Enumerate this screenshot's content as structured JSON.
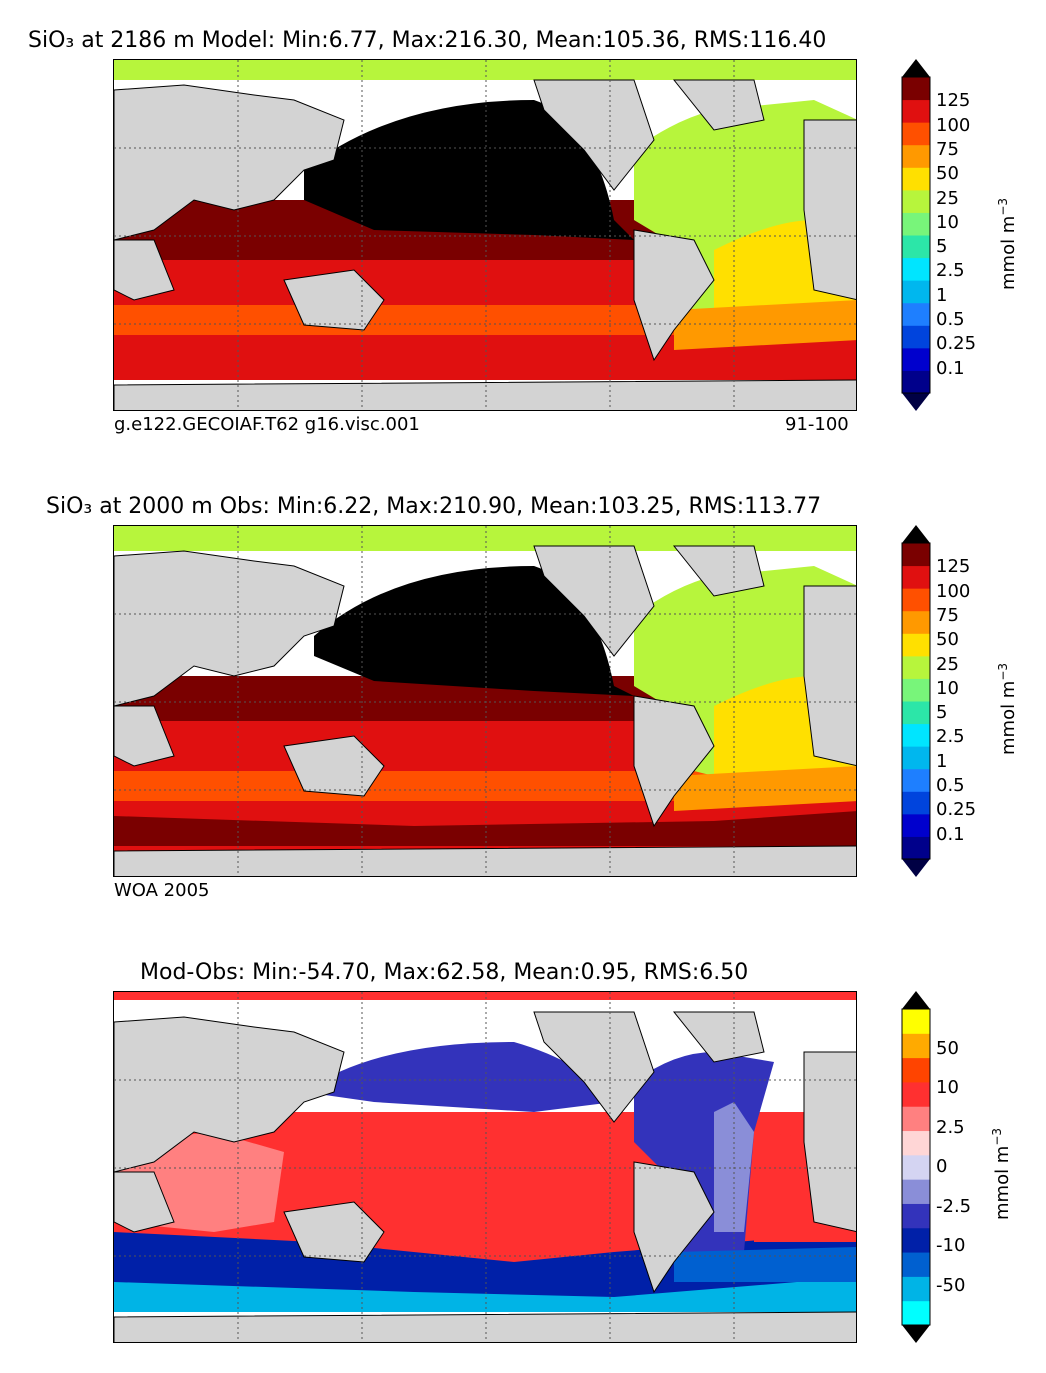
{
  "panels": [
    {
      "title": "SiO₃ at 2186 m Model: Min:6.77, Max:216.30, Mean:105.36, RMS:116.40",
      "caption_left": "g.e122.GECOIAF.T62 g16.visc.001",
      "caption_right": "91-100",
      "colorbar": {
        "unit": "mmol m",
        "unit_exp": "−3",
        "ticks": [
          "125",
          "100",
          "75",
          "50",
          "25",
          "10",
          "5",
          "2.5",
          "1",
          "0.5",
          "0.25",
          "0.1"
        ],
        "colors": [
          "#00008b",
          "#0000cd",
          "#0044dd",
          "#1e7fff",
          "#00b7ee",
          "#00e5ff",
          "#2ce6a8",
          "#78f57a",
          "#b7f53c",
          "#ffe000",
          "#ff9900",
          "#ff5000",
          "#e01010",
          "#7a0000"
        ],
        "over_color": "#000000",
        "under_color": "#000044"
      }
    },
    {
      "title": "SiO₃ at 2000 m Obs: Min:6.22, Max:210.90, Mean:103.25, RMS:113.77",
      "caption_left": "WOA 2005",
      "caption_right": "",
      "colorbar": {
        "unit": "mmol m",
        "unit_exp": "−3",
        "ticks": [
          "125",
          "100",
          "75",
          "50",
          "25",
          "10",
          "5",
          "2.5",
          "1",
          "0.5",
          "0.25",
          "0.1"
        ],
        "colors": [
          "#00008b",
          "#0000cd",
          "#0044dd",
          "#1e7fff",
          "#00b7ee",
          "#00e5ff",
          "#2ce6a8",
          "#78f57a",
          "#b7f53c",
          "#ffe000",
          "#ff9900",
          "#ff5000",
          "#e01010",
          "#7a0000"
        ],
        "over_color": "#000000",
        "under_color": "#000044"
      }
    },
    {
      "title": "Mod-Obs: Min:-54.70, Max:62.58, Mean:0.95, RMS:6.50",
      "caption_left": "",
      "caption_right": "",
      "colorbar": {
        "unit": "mmol m",
        "unit_exp": "−3",
        "ticks": [
          "50",
          "10",
          "2.5",
          "0",
          "-2.5",
          "-10",
          "-50"
        ],
        "colors": [
          "#00ffff",
          "#00b4e6",
          "#0060d0",
          "#0020a8",
          "#3333bb",
          "#8a8ed8",
          "#d4d4f2",
          "#ffd6d6",
          "#ff8080",
          "#ff3030",
          "#ff4400",
          "#ffaa00",
          "#ffff00"
        ],
        "over_color": "#000000",
        "under_color": "#000000"
      }
    }
  ],
  "map_colors": {
    "land": "#d3d3d3",
    "no_data": "#ffffff",
    "coast": "#000000",
    "grid": "#555555"
  }
}
